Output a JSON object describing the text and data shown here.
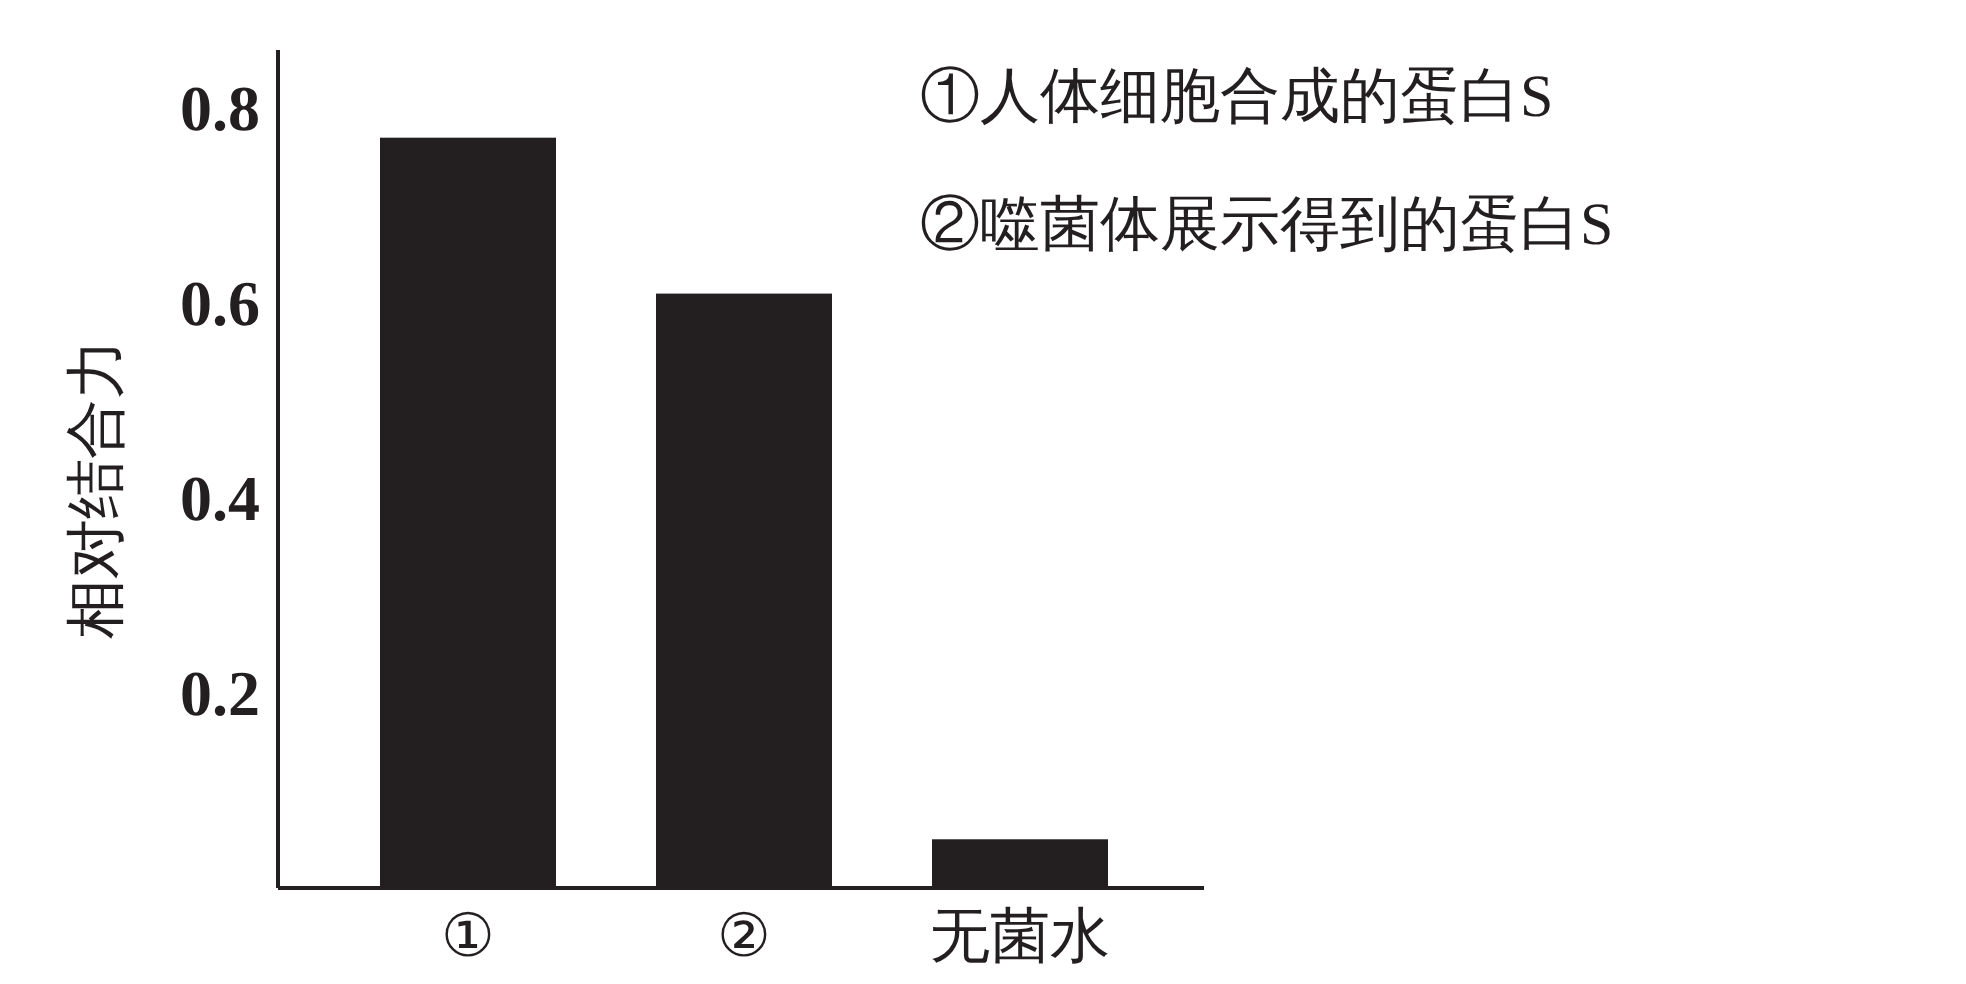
{
  "chart_data": {
    "type": "bar",
    "categories": [
      "①",
      "②",
      "无菌水"
    ],
    "values": [
      0.77,
      0.61,
      0.05
    ],
    "color": "#231f20",
    "ylabel": "相对结合力",
    "ylim": [
      0,
      0.86
    ],
    "yticks": [
      0.2,
      0.4,
      0.6,
      0.8
    ],
    "annotations": [
      "①人体细胞合成的蛋白S",
      "②噬菌体展示得到的蛋白S"
    ]
  }
}
